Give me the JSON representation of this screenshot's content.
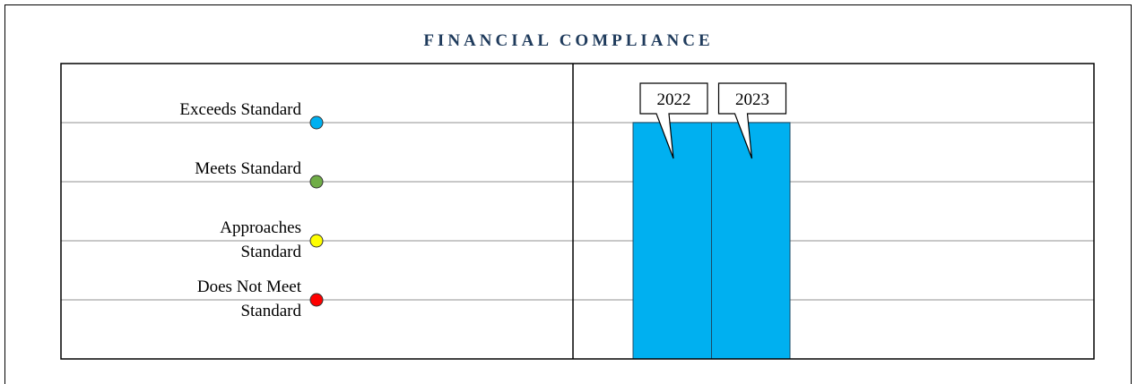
{
  "chart_data": {
    "type": "bar",
    "title": "FINANCIAL COMPLIANCE",
    "categories": [
      "2022",
      "2023"
    ],
    "values": [
      4,
      4
    ],
    "color": "#00b0f0",
    "ylim": [
      0,
      5
    ],
    "yticks": [
      {
        "value": 1,
        "label": "Does Not Meet Standard"
      },
      {
        "value": 2,
        "label": "Approaches Standard"
      },
      {
        "value": 3,
        "label": "Meets Standard"
      },
      {
        "value": 4,
        "label": "Exceeds Standard"
      }
    ],
    "tick_colors": [
      "#ff0000",
      "#ffff00",
      "#70ad47",
      "#00b0f0"
    ],
    "grid": true
  }
}
